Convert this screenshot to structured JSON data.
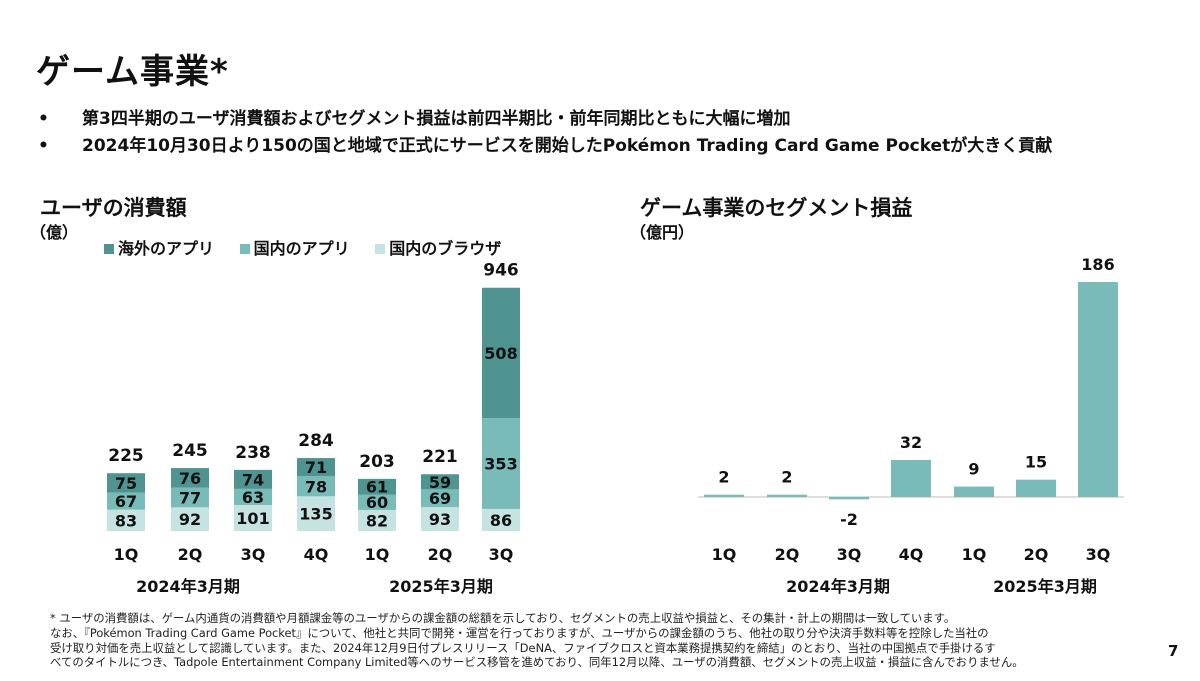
{
  "title": "ゲーム事業*",
  "bullets": [
    "第3四半期のユーザ消費額およびセグメント損益は前四半期比・前年同期比ともに大幅に増加",
    "2024年10月30日より150の国と地域で正式にサービスを開始したPokémon Trading Card Game Pocketが大きく貢献"
  ],
  "footnote": [
    "* ユーザの消費額は、ゲーム内通貨の消費額や月額課金等のユーザからの課金額の総額を示しており、セグメントの売上収益や損益と、その集計・計上の期間は一致しています。",
    "なお、『Pokémon Trading Card Game Pocket』について、他社と共同で開発・運営を行っておりますが、ユーザからの課金額のうち、他社の取り分や決済手数料等を控除した当社の",
    "受け取り対価を売上収益として認識しています。また、2024年12月9日付プレスリリース「DeNA、ファイブクロスと資本業務提携契約を締結」のとおり、当社の中国拠点で手掛けるす",
    "べてのタイトルにつき、Tadpole Entertainment Company Limited等へのサービス移管を進めており、同年12月以降、ユーザの消費額、セグメントの売上収益・損益に含んでおりません。"
  ],
  "page_number": "7",
  "chart_data": [
    {
      "type": "bar",
      "stacked": true,
      "title": "ユーザの消費額",
      "unit": "（億）",
      "categories": [
        "1Q",
        "2Q",
        "3Q",
        "4Q",
        "1Q",
        "2Q",
        "3Q"
      ],
      "periods": [
        {
          "label": "2024年3月期",
          "categories": [
            "1Q",
            "2Q",
            "3Q",
            "4Q"
          ]
        },
        {
          "label": "2025年3月期",
          "categories": [
            "1Q",
            "2Q",
            "3Q"
          ]
        }
      ],
      "legend_position": "top",
      "series": [
        {
          "name": "国内のブラウザ",
          "color": "#c5e3e1",
          "values": [
            83,
            92,
            101,
            135,
            82,
            93,
            86
          ]
        },
        {
          "name": "国内のアプリ",
          "color": "#78bbb8",
          "values": [
            67,
            77,
            63,
            78,
            60,
            69,
            353
          ]
        },
        {
          "name": "海外のアプリ",
          "color": "#4f9490",
          "values": [
            75,
            76,
            74,
            71,
            61,
            59,
            508
          ]
        }
      ],
      "legend_order": [
        "海外のアプリ",
        "国内のアプリ",
        "国内のブラウザ"
      ],
      "totals": [
        225,
        245,
        238,
        284,
        203,
        221,
        946
      ],
      "ylim": [
        0,
        946
      ],
      "grid": false
    },
    {
      "type": "bar",
      "title": "ゲーム事業のセグメント損益",
      "unit": "（億円）",
      "categories": [
        "1Q",
        "2Q",
        "3Q",
        "4Q",
        "1Q",
        "2Q",
        "3Q"
      ],
      "periods": [
        {
          "label": "2024年3月期",
          "categories": [
            "1Q",
            "2Q",
            "3Q",
            "4Q"
          ]
        },
        {
          "label": "2025年3月期",
          "categories": [
            "1Q",
            "2Q",
            "3Q"
          ]
        }
      ],
      "values": [
        2,
        2,
        -2,
        32,
        9,
        15,
        186
      ],
      "color": "#78bbb8",
      "grid": false
    }
  ]
}
